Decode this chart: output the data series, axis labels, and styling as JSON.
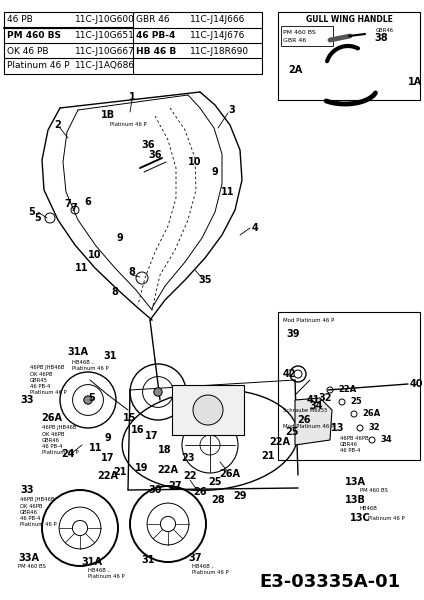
{
  "bg_color": "#ffffff",
  "header_rows": [
    [
      "46 PB",
      "11C-J10G600",
      "GBR 46",
      "11C-J14J666"
    ],
    [
      "PM 460 BS",
      "11C-J10G651",
      "46 PB-4",
      "11C-J14J676"
    ],
    [
      "OK 46 PB",
      "11C-J10G667",
      "HB 46 B",
      "11C-J18R690"
    ],
    [
      "Platinum 46 P",
      "11C-J1AQ686",
      "",
      ""
    ]
  ],
  "footer_code": "E3-03335A-01"
}
